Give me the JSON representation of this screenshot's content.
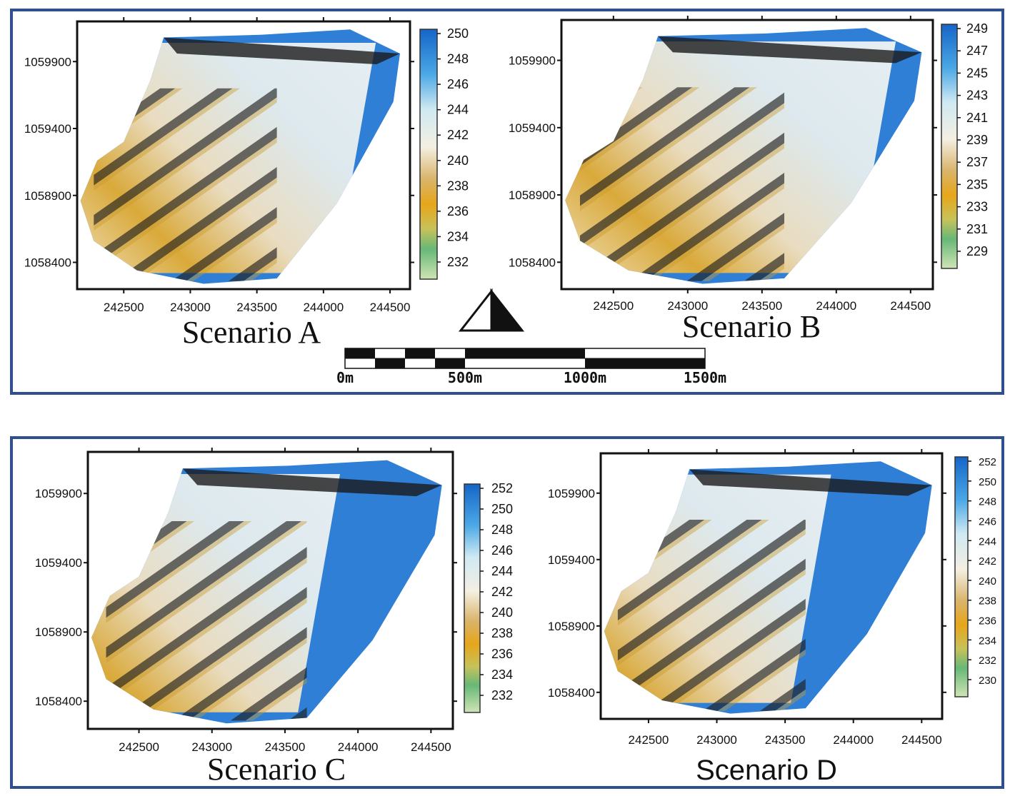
{
  "figure": "Elevation maps of four scenarios",
  "colors": {
    "frame": "#2f4f8f",
    "low": "#c8e0a8",
    "mid_low": "#e6a91e",
    "mid": "#f1ead8",
    "high": "#2f7fd6",
    "shadow": "#1a1a1a"
  },
  "north_arrow": {
    "icon": "north-arrow-icon"
  },
  "scale_bar": {
    "labels": [
      "0m",
      "500m",
      "1000m",
      "1500m"
    ]
  },
  "panels": [
    {
      "id": "A",
      "title": "Scenario A",
      "x_ticks": [
        "242500",
        "243000",
        "243500",
        "244000",
        "244500"
      ],
      "y_ticks": [
        "1059900",
        "1059400",
        "1058900",
        "1058400"
      ],
      "colorbar": [
        "250",
        "248",
        "246",
        "244",
        "242",
        "240",
        "238",
        "236",
        "234",
        "232"
      ]
    },
    {
      "id": "B",
      "title": "Scenario B",
      "x_ticks": [
        "242500",
        "243000",
        "243500",
        "244000",
        "244500"
      ],
      "y_ticks": [
        "1059900",
        "1059400",
        "1058900",
        "1058400"
      ],
      "colorbar": [
        "249",
        "247",
        "245",
        "243",
        "241",
        "239",
        "237",
        "235",
        "233",
        "231",
        "229"
      ]
    },
    {
      "id": "C",
      "title": "Scenario C",
      "x_ticks": [
        "242500",
        "243000",
        "243500",
        "244000",
        "244500"
      ],
      "y_ticks": [
        "1059900",
        "1059400",
        "1058900",
        "1058400"
      ],
      "colorbar": [
        "252",
        "250",
        "248",
        "246",
        "244",
        "242",
        "240",
        "238",
        "236",
        "234",
        "232"
      ]
    },
    {
      "id": "D",
      "title": "Scenario D",
      "x_ticks": [
        "242500",
        "243000",
        "243500",
        "244000",
        "244500"
      ],
      "y_ticks": [
        "1059900",
        "1059400",
        "1058900",
        "1058400"
      ],
      "colorbar": [
        "252",
        "250",
        "248",
        "246",
        "244",
        "242",
        "240",
        "238",
        "236",
        "234",
        "232",
        "230"
      ]
    }
  ]
}
